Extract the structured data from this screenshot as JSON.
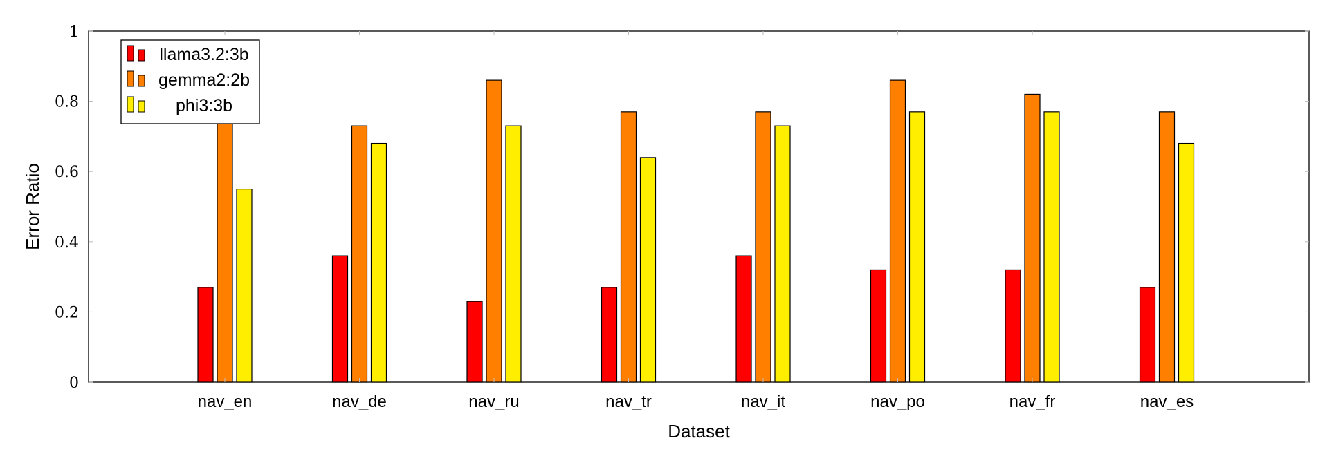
{
  "chart_data": {
    "type": "bar",
    "xlabel": "Dataset",
    "ylabel": "Error Ratio",
    "ylim": [
      0,
      1
    ],
    "yticks": [
      "0",
      "0.2",
      "0.4",
      "0.6",
      "0.8",
      "1"
    ],
    "categories": [
      "nav_en",
      "nav_de",
      "nav_ru",
      "nav_tr",
      "nav_it",
      "nav_po",
      "nav_fr",
      "nav_es"
    ],
    "series": [
      {
        "name": "llama3.2:3b",
        "color": "#ff0000",
        "values": [
          0.27,
          0.36,
          0.23,
          0.27,
          0.36,
          0.32,
          0.32,
          0.27
        ]
      },
      {
        "name": "gemma2:2b",
        "color": "#ff7f00",
        "values": [
          0.77,
          0.73,
          0.86,
          0.77,
          0.77,
          0.86,
          0.82,
          0.77
        ]
      },
      {
        "name": "phi3:3b",
        "color": "#ffee00",
        "values": [
          0.55,
          0.68,
          0.73,
          0.64,
          0.73,
          0.77,
          0.77,
          0.68
        ]
      }
    ],
    "legend_position": "top-left",
    "grid": false
  }
}
